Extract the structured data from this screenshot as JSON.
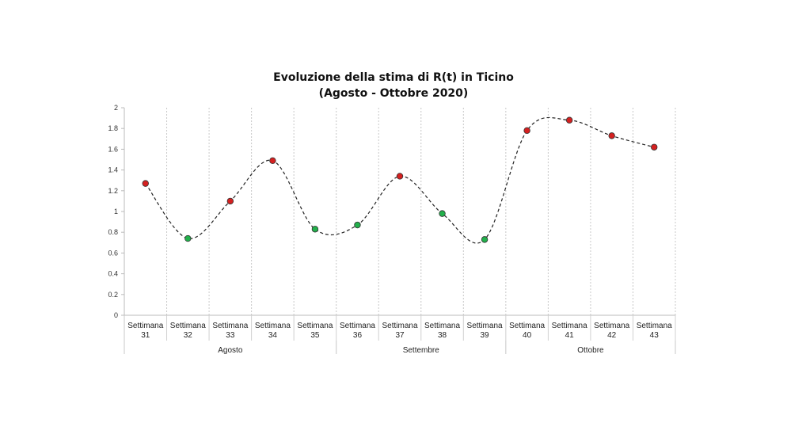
{
  "chart_data": {
    "type": "line",
    "title": "Evoluzione della stima di R(t) in Ticino",
    "subtitle": "(Agosto - Ottobre 2020)",
    "xlabel": "",
    "ylabel": "",
    "ylim": [
      0,
      2
    ],
    "yticks": [
      "0",
      "0.2",
      "0.4",
      "0.6",
      "0.8",
      "1",
      "1.2",
      "1.4",
      "1.6",
      "1.8",
      "2"
    ],
    "categories": [
      {
        "line1": "Settimana",
        "line2": "31"
      },
      {
        "line1": "Settimana",
        "line2": "32"
      },
      {
        "line1": "Settimana",
        "line2": "33"
      },
      {
        "line1": "Settimana",
        "line2": "34"
      },
      {
        "line1": "Settimana",
        "line2": "35"
      },
      {
        "line1": "Settimana",
        "line2": "36"
      },
      {
        "line1": "Settimana",
        "line2": "37"
      },
      {
        "line1": "Settimana",
        "line2": "38"
      },
      {
        "line1": "Settimana",
        "line2": "39"
      },
      {
        "line1": "Settimana",
        "line2": "40"
      },
      {
        "line1": "Settimana",
        "line2": "41"
      },
      {
        "line1": "Settimana",
        "line2": "42"
      },
      {
        "line1": "Settimana",
        "line2": "43"
      }
    ],
    "groups": [
      {
        "label": "Agosto",
        "count": 5
      },
      {
        "label": "Settembre",
        "count": 4
      },
      {
        "label": "Ottobre",
        "count": 4
      }
    ],
    "series": [
      {
        "values": [
          1.27,
          0.74,
          1.1,
          1.49,
          0.83,
          0.87,
          1.34,
          0.98,
          0.73,
          1.78,
          1.88,
          1.73,
          1.62
        ],
        "line_style": "dashed smoothed",
        "line_color": "#222222"
      }
    ],
    "marker_rule": {
      "threshold": 1,
      "above_color": "#d42020",
      "below_color": "#22b04b"
    },
    "grid": {
      "vertical": "dotted",
      "horizontal": false
    }
  }
}
